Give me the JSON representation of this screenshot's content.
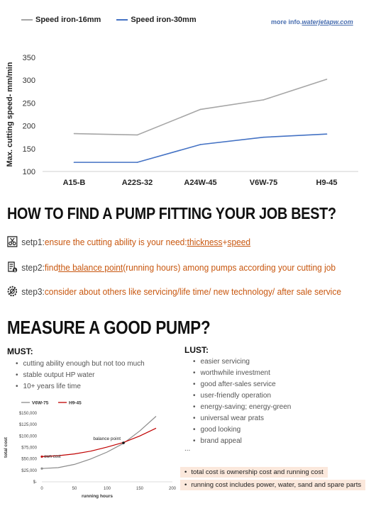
{
  "chart_data": [
    {
      "type": "line",
      "categories": [
        "A15-B",
        "A22S-32",
        "A24W-45",
        "V6W-75",
        "H9-45"
      ],
      "series": [
        {
          "name": "Speed iron-16mm",
          "color": "#a6a6a6",
          "values": [
            183,
            180,
            236,
            257,
            302
          ]
        },
        {
          "name": "Speed iron-30mm",
          "color": "#4472c4",
          "values": [
            120,
            120,
            159,
            175,
            182
          ]
        }
      ],
      "ylabel": "Max. cutting speed- mm/min",
      "ylim": [
        100,
        350
      ],
      "yticks": [
        "100",
        "150",
        "200",
        "250",
        "300",
        "350"
      ],
      "grid": false,
      "legend": "top-left"
    },
    {
      "type": "line",
      "series": [
        {
          "name": "V6W-75",
          "color": "#8c8c8c",
          "x": [
            0,
            25,
            50,
            75,
            100,
            125,
            150,
            175
          ],
          "y": [
            29000,
            31000,
            38000,
            50000,
            65000,
            84000,
            111000,
            143000
          ]
        },
        {
          "name": "H9-45",
          "color": "#c00000",
          "x": [
            0,
            25,
            50,
            75,
            100,
            125,
            150,
            175
          ],
          "y": [
            55000,
            57000,
            61000,
            67000,
            76000,
            86000,
            100000,
            117000
          ]
        }
      ],
      "xlabel": "running hours",
      "ylabel": "total cost",
      "xlim": [
        0,
        200
      ],
      "ylim": [
        0,
        150000
      ],
      "xticks": [
        "0",
        "50",
        "100",
        "150",
        "200"
      ],
      "yticks": [
        "$-",
        "$25,000",
        "$50,000",
        "$75,000",
        "$100,000",
        "$125,000",
        "$150,000"
      ],
      "annotations": [
        "balance point",
        "own cost"
      ],
      "legend": "top-left"
    }
  ],
  "header": {
    "more_info_prefix": "more info.",
    "more_info_link": "waterjetapw.com"
  },
  "section1": {
    "title": "HOW TO FIND A PUMP FITTING YOUR JOB BEST?",
    "steps": [
      {
        "icon": "scissors-icon",
        "prefix": "setp1:",
        "text_before": "ensure the cutting ability is your need:",
        "underlined": "thickness",
        "mid": "+",
        "underlined2": "speed",
        "text_after": ""
      },
      {
        "icon": "invoice-dollar-icon",
        "prefix": "step2:",
        "text_before": "find ",
        "underlined": "the balance point",
        "mid": "(running hours) among pumps according your cutting job",
        "underlined2": "",
        "text_after": ""
      },
      {
        "icon": "gear-icon",
        "prefix": "step3:",
        "text_before": "consider about others like servicing/life time/ new technology/ after sale service",
        "underlined": "",
        "mid": "",
        "underlined2": "",
        "text_after": ""
      }
    ]
  },
  "section2": {
    "title": "MEASURE A GOOD PUMP?",
    "must_title": "MUST:",
    "must_items": [
      "cutting ability enough but not too much",
      "stable output HP water",
      "10+ years life time"
    ],
    "lust_title": "LUST:",
    "lust_items": [
      "easier servicing",
      "worthwhile investment",
      "good after-sales service",
      "user-friendly operation",
      "energy-saving; energy-green",
      "universal wear prats",
      "good looking",
      "brand appeal"
    ],
    "ellipsis": "...",
    "notes": [
      "total cost is ownership cost and running cost",
      "running cost includes power, water, sand and spare parts"
    ]
  }
}
